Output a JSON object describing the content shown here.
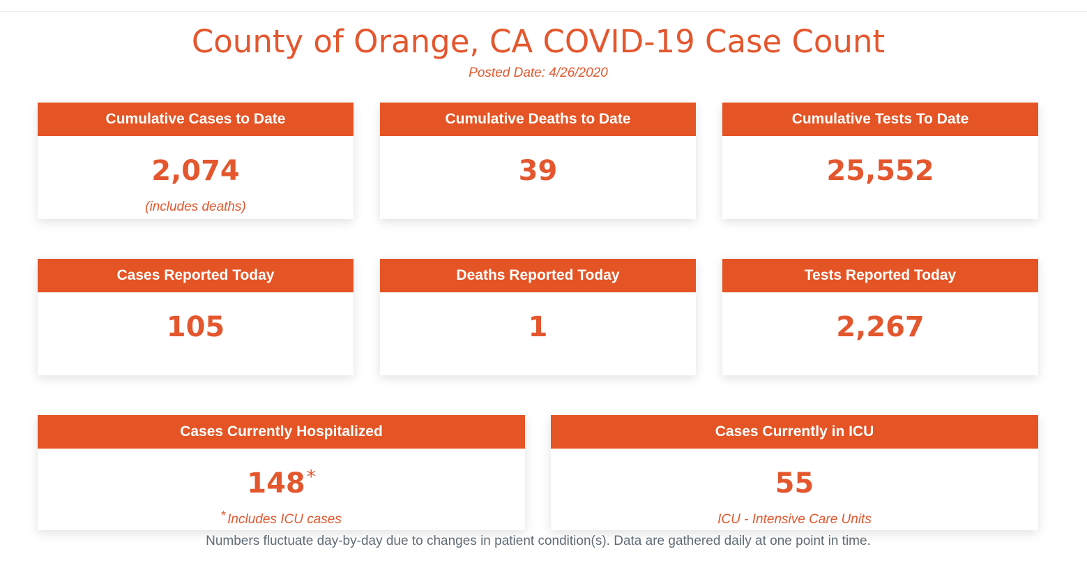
{
  "header": {
    "title": "County of Orange, CA COVID-19 Case Count",
    "posted_date": "Posted Date: 4/26/2020"
  },
  "colors": {
    "accent": "#e55424",
    "footnote_text": "#5f6b75"
  },
  "cards": {
    "cumulative_cases": {
      "label": "Cumulative Cases to Date",
      "value": "2,074",
      "note": "(includes deaths)"
    },
    "cumulative_deaths": {
      "label": "Cumulative Deaths to Date",
      "value": "39"
    },
    "cumulative_tests": {
      "label": "Cumulative Tests To Date",
      "value": "25,552"
    },
    "cases_today": {
      "label": "Cases Reported Today",
      "value": "105"
    },
    "deaths_today": {
      "label": "Deaths Reported Today",
      "value": "1"
    },
    "tests_today": {
      "label": "Tests Reported Today",
      "value": "2,267"
    },
    "hospitalized": {
      "label": "Cases Currently Hospitalized",
      "value": "148",
      "value_marker": "*",
      "note_marker": "*",
      "note": "Includes ICU cases"
    },
    "icu": {
      "label": "Cases Currently in ICU",
      "value": "55",
      "note": "ICU - Intensive Care Units"
    }
  },
  "footnote": "Numbers fluctuate day-by-day due to changes in patient condition(s). Data are gathered daily at one point in time."
}
